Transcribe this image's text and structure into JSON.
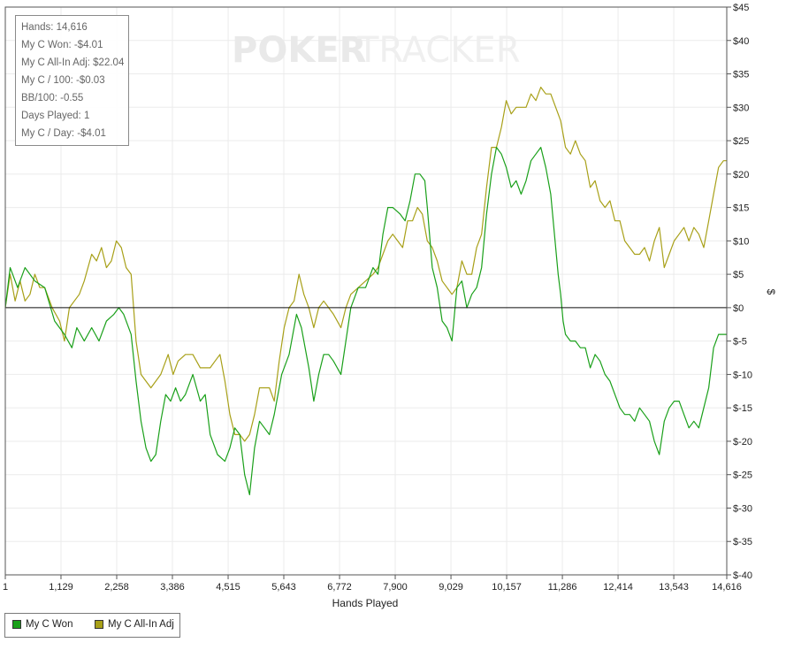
{
  "watermark": {
    "strong": "POKER",
    "light": "TRACKER"
  },
  "stats": [
    "Hands: 14,616",
    "My C Won: -$4.01",
    "My C All-In Adj: $22.04",
    "My C / 100: -$0.03",
    "BB/100: -0.55",
    "Days Played: 1",
    "My C / Day: -$4.01"
  ],
  "legend": [
    {
      "label": "My C Won",
      "color": "#1aa01a"
    },
    {
      "label": "My C All-In Adj",
      "color": "#a8a018"
    }
  ],
  "chart_data": {
    "type": "line",
    "xlabel": "Hands Played",
    "ylabel": "$",
    "xlim": [
      1,
      14616
    ],
    "ylim": [
      -40,
      45
    ],
    "x_ticks": [
      "1",
      "1,129",
      "2,258",
      "3,386",
      "4,515",
      "5,643",
      "6,772",
      "7,900",
      "9,029",
      "10,157",
      "11,286",
      "12,414",
      "13,543",
      "14,616"
    ],
    "y_ticks": [
      "$45",
      "$40",
      "$35",
      "$30",
      "$25",
      "$20",
      "$15",
      "$10",
      "$5",
      "$0",
      "$-5",
      "$-10",
      "$-15",
      "$-20",
      "$-25",
      "$-30",
      "$-35",
      "$-40"
    ],
    "grid": true,
    "legend_position": "bottom-left",
    "series": [
      {
        "name": "My C Won",
        "color": "#1aa01a",
        "points": [
          [
            1,
            0
          ],
          [
            100,
            6
          ],
          [
            250,
            3
          ],
          [
            400,
            6
          ],
          [
            600,
            4
          ],
          [
            800,
            3
          ],
          [
            1000,
            -2
          ],
          [
            1200,
            -4
          ],
          [
            1350,
            -6
          ],
          [
            1450,
            -3
          ],
          [
            1600,
            -5
          ],
          [
            1750,
            -3
          ],
          [
            1900,
            -5
          ],
          [
            2050,
            -2
          ],
          [
            2200,
            -1
          ],
          [
            2300,
            0
          ],
          [
            2400,
            -1
          ],
          [
            2550,
            -4
          ],
          [
            2650,
            -11
          ],
          [
            2750,
            -17
          ],
          [
            2850,
            -21
          ],
          [
            2950,
            -23
          ],
          [
            3050,
            -22
          ],
          [
            3150,
            -17
          ],
          [
            3250,
            -13
          ],
          [
            3350,
            -14
          ],
          [
            3450,
            -12
          ],
          [
            3550,
            -14
          ],
          [
            3650,
            -13
          ],
          [
            3800,
            -10
          ],
          [
            3950,
            -14
          ],
          [
            4050,
            -13
          ],
          [
            4150,
            -19
          ],
          [
            4300,
            -22
          ],
          [
            4450,
            -23
          ],
          [
            4550,
            -21
          ],
          [
            4650,
            -18
          ],
          [
            4750,
            -19
          ],
          [
            4850,
            -25
          ],
          [
            4950,
            -28
          ],
          [
            5050,
            -21
          ],
          [
            5150,
            -17
          ],
          [
            5250,
            -18
          ],
          [
            5350,
            -19
          ],
          [
            5450,
            -16
          ],
          [
            5600,
            -10
          ],
          [
            5750,
            -7
          ],
          [
            5900,
            -1
          ],
          [
            6000,
            -3
          ],
          [
            6150,
            -9
          ],
          [
            6250,
            -14
          ],
          [
            6350,
            -10
          ],
          [
            6450,
            -7
          ],
          [
            6550,
            -7
          ],
          [
            6650,
            -8
          ],
          [
            6800,
            -10
          ],
          [
            6900,
            -5
          ],
          [
            7000,
            0
          ],
          [
            7150,
            3
          ],
          [
            7300,
            3
          ],
          [
            7450,
            6
          ],
          [
            7550,
            5
          ],
          [
            7650,
            11
          ],
          [
            7750,
            15
          ],
          [
            7850,
            15
          ],
          [
            8000,
            14
          ],
          [
            8100,
            13
          ],
          [
            8200,
            16
          ],
          [
            8300,
            20
          ],
          [
            8400,
            20
          ],
          [
            8500,
            19
          ],
          [
            8550,
            15
          ],
          [
            8650,
            6
          ],
          [
            8750,
            3
          ],
          [
            8850,
            -2
          ],
          [
            8950,
            -3
          ],
          [
            9050,
            -5
          ],
          [
            9150,
            3
          ],
          [
            9250,
            4
          ],
          [
            9350,
            0
          ],
          [
            9450,
            2
          ],
          [
            9550,
            3
          ],
          [
            9650,
            6
          ],
          [
            9750,
            14
          ],
          [
            9850,
            20
          ],
          [
            9950,
            24
          ],
          [
            10050,
            23
          ],
          [
            10150,
            21
          ],
          [
            10250,
            18
          ],
          [
            10350,
            19
          ],
          [
            10450,
            17
          ],
          [
            10550,
            19
          ],
          [
            10650,
            22
          ],
          [
            10750,
            23
          ],
          [
            10850,
            24
          ],
          [
            10950,
            21
          ],
          [
            11050,
            17
          ],
          [
            11100,
            13
          ],
          [
            11150,
            9
          ],
          [
            11200,
            5
          ],
          [
            11250,
            2
          ],
          [
            11300,
            -2
          ],
          [
            11350,
            -4
          ],
          [
            11450,
            -5
          ],
          [
            11550,
            -5
          ],
          [
            11650,
            -6
          ],
          [
            11750,
            -6
          ],
          [
            11850,
            -9
          ],
          [
            11950,
            -7
          ],
          [
            12050,
            -8
          ],
          [
            12150,
            -10
          ],
          [
            12250,
            -11
          ],
          [
            12350,
            -13
          ],
          [
            12450,
            -15
          ],
          [
            12550,
            -16
          ],
          [
            12650,
            -16
          ],
          [
            12750,
            -17
          ],
          [
            12850,
            -15
          ],
          [
            12950,
            -16
          ],
          [
            13050,
            -17
          ],
          [
            13150,
            -20
          ],
          [
            13250,
            -22
          ],
          [
            13350,
            -17
          ],
          [
            13450,
            -15
          ],
          [
            13550,
            -14
          ],
          [
            13650,
            -14
          ],
          [
            13750,
            -16
          ],
          [
            13850,
            -18
          ],
          [
            13950,
            -17
          ],
          [
            14050,
            -18
          ],
          [
            14150,
            -15
          ],
          [
            14250,
            -12
          ],
          [
            14350,
            -6
          ],
          [
            14450,
            -4
          ],
          [
            14616,
            -4
          ]
        ]
      },
      {
        "name": "My C All-In Adj",
        "color": "#a8a018",
        "points": [
          [
            1,
            0
          ],
          [
            100,
            5
          ],
          [
            200,
            1
          ],
          [
            300,
            4
          ],
          [
            400,
            1
          ],
          [
            500,
            2
          ],
          [
            600,
            5
          ],
          [
            700,
            3
          ],
          [
            800,
            3
          ],
          [
            950,
            0
          ],
          [
            1100,
            -2
          ],
          [
            1200,
            -5
          ],
          [
            1300,
            0
          ],
          [
            1400,
            1
          ],
          [
            1500,
            2
          ],
          [
            1600,
            4
          ],
          [
            1750,
            8
          ],
          [
            1850,
            7
          ],
          [
            1950,
            9
          ],
          [
            2050,
            6
          ],
          [
            2150,
            7
          ],
          [
            2250,
            10
          ],
          [
            2350,
            9
          ],
          [
            2450,
            6
          ],
          [
            2550,
            5
          ],
          [
            2650,
            -5
          ],
          [
            2750,
            -10
          ],
          [
            2850,
            -11
          ],
          [
            2950,
            -12
          ],
          [
            3050,
            -11
          ],
          [
            3150,
            -10
          ],
          [
            3300,
            -7
          ],
          [
            3400,
            -10
          ],
          [
            3500,
            -8
          ],
          [
            3650,
            -7
          ],
          [
            3800,
            -7
          ],
          [
            3950,
            -9
          ],
          [
            4050,
            -9
          ],
          [
            4150,
            -9
          ],
          [
            4250,
            -8
          ],
          [
            4350,
            -7
          ],
          [
            4450,
            -11
          ],
          [
            4550,
            -16
          ],
          [
            4650,
            -19
          ],
          [
            4750,
            -19
          ],
          [
            4850,
            -20
          ],
          [
            4950,
            -19
          ],
          [
            5050,
            -16
          ],
          [
            5150,
            -12
          ],
          [
            5250,
            -12
          ],
          [
            5350,
            -12
          ],
          [
            5450,
            -14
          ],
          [
            5550,
            -8
          ],
          [
            5650,
            -3
          ],
          [
            5750,
            0
          ],
          [
            5850,
            1
          ],
          [
            5950,
            5
          ],
          [
            6050,
            2
          ],
          [
            6150,
            0
          ],
          [
            6250,
            -3
          ],
          [
            6350,
            0
          ],
          [
            6450,
            1
          ],
          [
            6550,
            0
          ],
          [
            6650,
            -1
          ],
          [
            6800,
            -3
          ],
          [
            6900,
            0
          ],
          [
            7000,
            2
          ],
          [
            7150,
            3
          ],
          [
            7300,
            4
          ],
          [
            7450,
            5
          ],
          [
            7550,
            6
          ],
          [
            7650,
            8
          ],
          [
            7750,
            10
          ],
          [
            7850,
            11
          ],
          [
            7950,
            10
          ],
          [
            8050,
            9
          ],
          [
            8150,
            13
          ],
          [
            8250,
            13
          ],
          [
            8350,
            15
          ],
          [
            8450,
            14
          ],
          [
            8550,
            10
          ],
          [
            8650,
            9
          ],
          [
            8750,
            7
          ],
          [
            8850,
            4
          ],
          [
            8950,
            3
          ],
          [
            9050,
            2
          ],
          [
            9150,
            3
          ],
          [
            9250,
            7
          ],
          [
            9350,
            5
          ],
          [
            9450,
            5
          ],
          [
            9550,
            9
          ],
          [
            9650,
            11
          ],
          [
            9750,
            18
          ],
          [
            9850,
            24
          ],
          [
            9950,
            24
          ],
          [
            10050,
            27
          ],
          [
            10150,
            31
          ],
          [
            10250,
            29
          ],
          [
            10350,
            30
          ],
          [
            10450,
            30
          ],
          [
            10550,
            30
          ],
          [
            10650,
            32
          ],
          [
            10750,
            31
          ],
          [
            10850,
            33
          ],
          [
            10950,
            32
          ],
          [
            11050,
            32
          ],
          [
            11150,
            30
          ],
          [
            11250,
            28
          ],
          [
            11350,
            24
          ],
          [
            11450,
            23
          ],
          [
            11550,
            25
          ],
          [
            11650,
            23
          ],
          [
            11750,
            22
          ],
          [
            11850,
            18
          ],
          [
            11950,
            19
          ],
          [
            12050,
            16
          ],
          [
            12150,
            15
          ],
          [
            12250,
            16
          ],
          [
            12350,
            13
          ],
          [
            12450,
            13
          ],
          [
            12550,
            10
          ],
          [
            12650,
            9
          ],
          [
            12750,
            8
          ],
          [
            12850,
            8
          ],
          [
            12950,
            9
          ],
          [
            13050,
            7
          ],
          [
            13150,
            10
          ],
          [
            13250,
            12
          ],
          [
            13350,
            6
          ],
          [
            13450,
            8
          ],
          [
            13550,
            10
          ],
          [
            13650,
            11
          ],
          [
            13750,
            12
          ],
          [
            13850,
            10
          ],
          [
            13950,
            12
          ],
          [
            14050,
            11
          ],
          [
            14150,
            9
          ],
          [
            14250,
            13
          ],
          [
            14350,
            17
          ],
          [
            14450,
            21
          ],
          [
            14550,
            22
          ],
          [
            14616,
            22
          ]
        ]
      }
    ]
  }
}
